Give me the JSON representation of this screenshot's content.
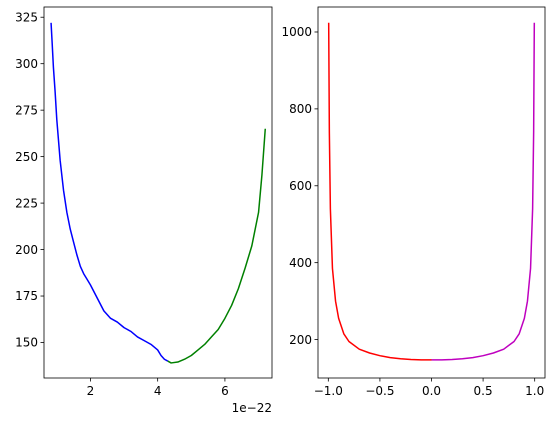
{
  "chart_data": [
    {
      "type": "line",
      "xlim": [
        0.62,
        7.4
      ],
      "ylim": [
        130.9,
        330.5
      ],
      "x_ticks": [
        2,
        4,
        6
      ],
      "y_ticks": [
        150,
        175,
        200,
        225,
        250,
        275,
        300,
        325
      ],
      "x_offset_label": "1e−22",
      "series": [
        {
          "color": "#0000ff",
          "x": [
            0.83,
            0.86,
            0.9,
            0.95,
            1.0,
            1.1,
            1.2,
            1.3,
            1.4,
            1.5,
            1.6,
            1.7,
            1.8,
            1.9,
            2.0,
            2.2,
            2.4,
            2.6,
            2.8,
            3.0,
            3.2,
            3.4,
            3.6,
            3.8,
            4.0,
            4.1,
            4.2,
            4.3
          ],
          "y": [
            322,
            312,
            298,
            285,
            270,
            248,
            232,
            220,
            211,
            204,
            197,
            191,
            187,
            184,
            181,
            174,
            167,
            163,
            161,
            158,
            156,
            153,
            151,
            149,
            146,
            143,
            141,
            140
          ]
        },
        {
          "color": "#008000",
          "x": [
            4.3,
            4.4,
            4.6,
            4.8,
            5.0,
            5.2,
            5.4,
            5.6,
            5.8,
            6.0,
            6.2,
            6.4,
            6.6,
            6.8,
            7.0,
            7.1,
            7.2
          ],
          "y": [
            140,
            139,
            139.5,
            141,
            143,
            146,
            149,
            153,
            157,
            163,
            170,
            179,
            190,
            202,
            220,
            240,
            265
          ]
        }
      ]
    },
    {
      "type": "line",
      "xlim": [
        -1.1,
        1.1
      ],
      "ylim": [
        100,
        1065
      ],
      "x_ticks": [
        -1.0,
        -0.5,
        0.0,
        0.5,
        1.0
      ],
      "y_ticks": [
        200,
        400,
        600,
        800,
        1000
      ],
      "series": [
        {
          "color": "#ff0000",
          "x": [
            -0.9964,
            -0.99,
            -0.98,
            -0.96,
            -0.93,
            -0.9,
            -0.85,
            -0.8,
            -0.7,
            -0.6,
            -0.5,
            -0.4,
            -0.3,
            -0.2,
            -0.1,
            0.0
          ],
          "y": [
            1024,
            740,
            540,
            385,
            300,
            255,
            215,
            195,
            175,
            165,
            158,
            153,
            150,
            148,
            147,
            147
          ]
        },
        {
          "color": "#bf00bf",
          "x": [
            0.0,
            0.1,
            0.2,
            0.3,
            0.4,
            0.5,
            0.6,
            0.7,
            0.8,
            0.85,
            0.9,
            0.93,
            0.96,
            0.98,
            0.99,
            0.9964
          ],
          "y": [
            147,
            147,
            148,
            150,
            153,
            158,
            165,
            175,
            195,
            215,
            255,
            300,
            385,
            540,
            740,
            1024
          ]
        }
      ]
    }
  ]
}
